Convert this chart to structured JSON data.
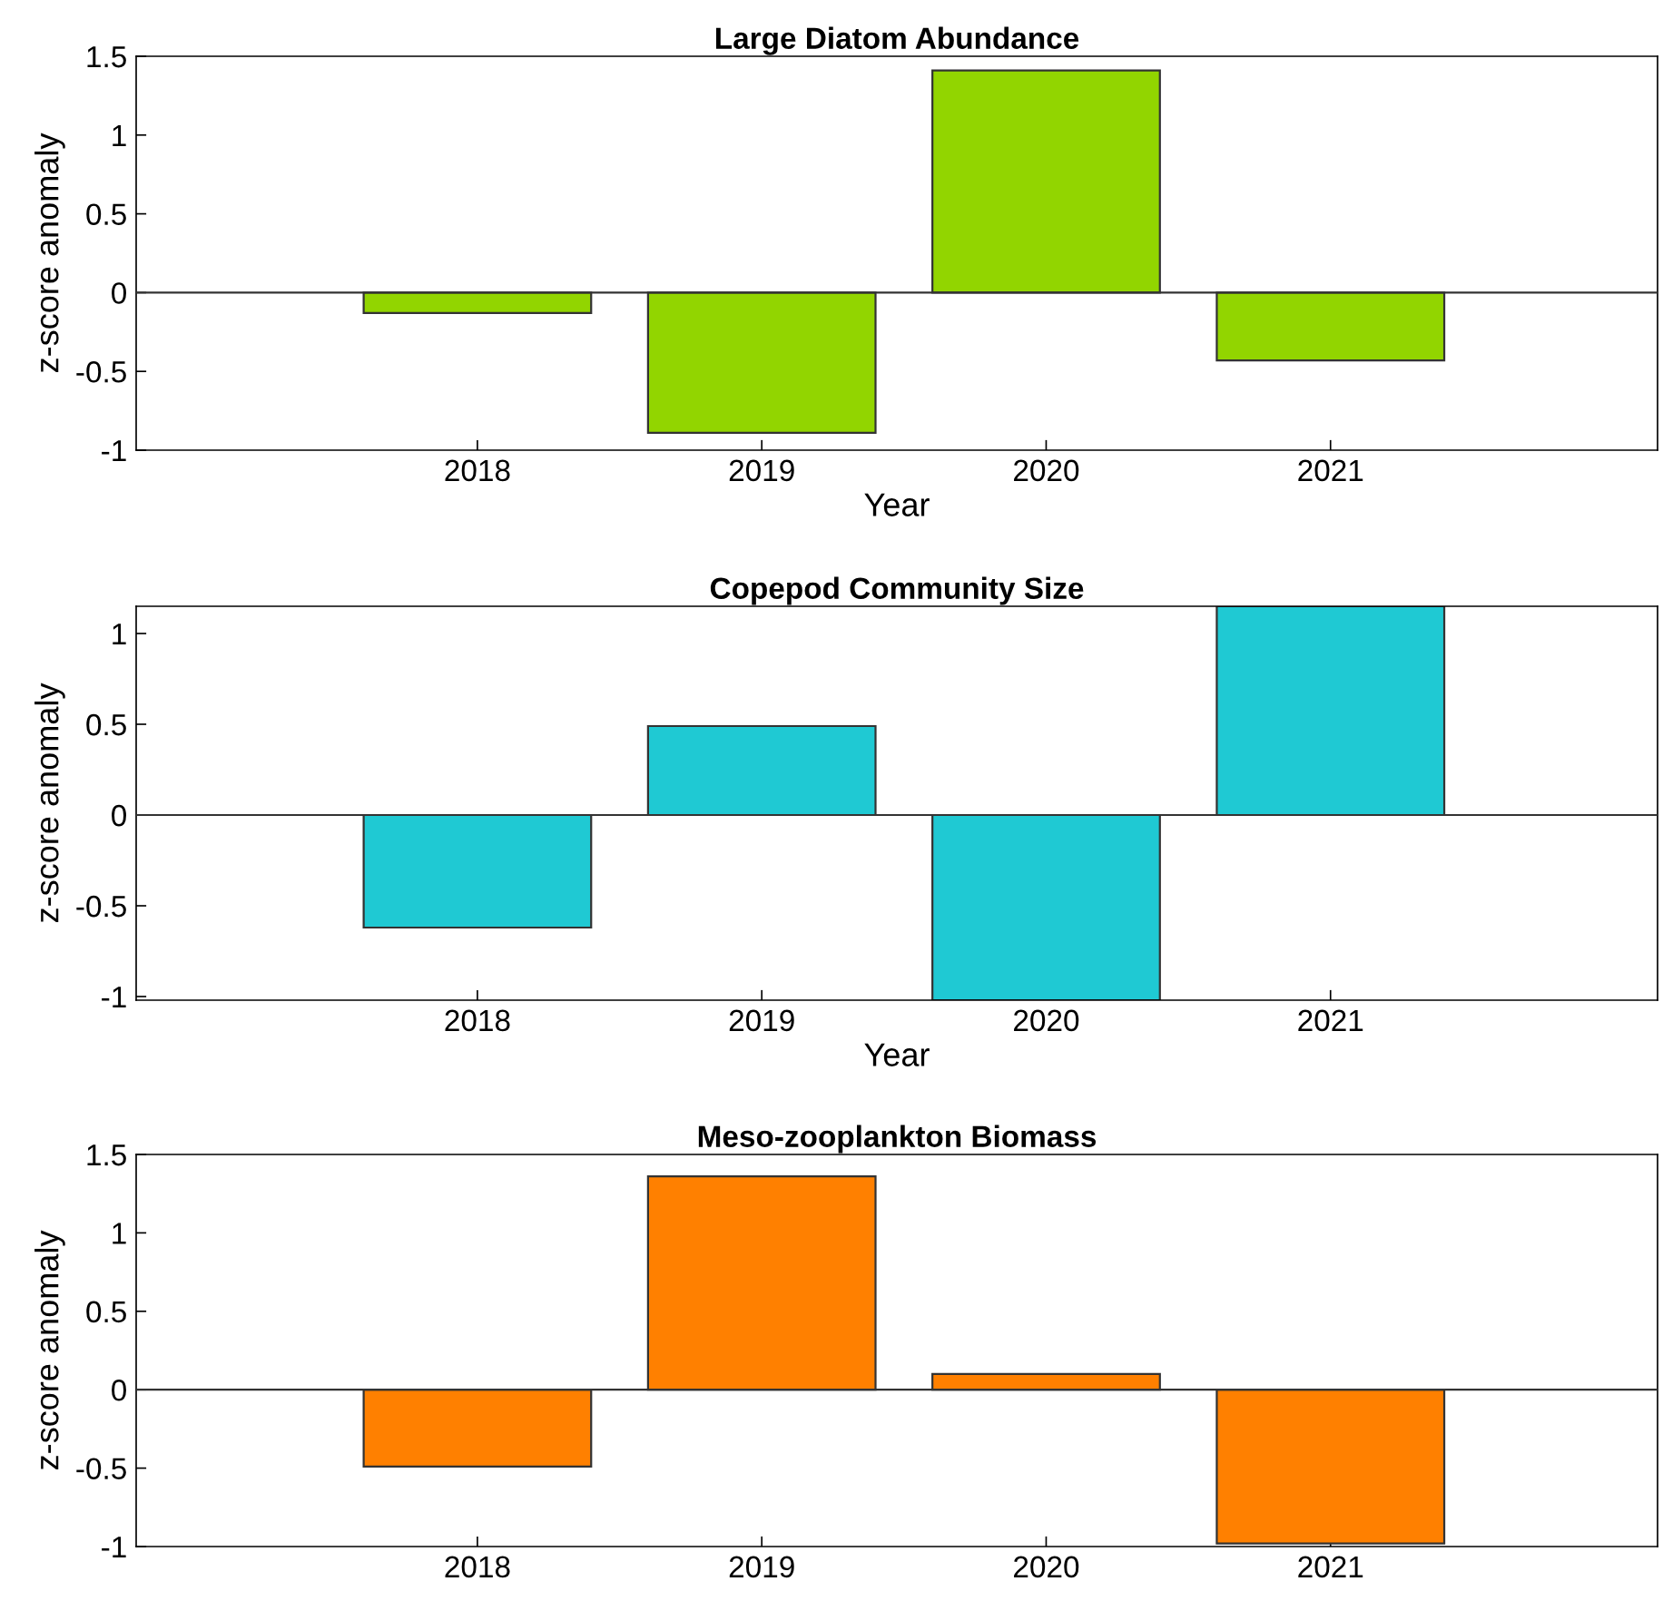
{
  "chart_data": [
    {
      "type": "bar",
      "title": "Large Diatom Abundance",
      "xlabel": "Year",
      "ylabel": "z-score anomaly",
      "x": [
        2018,
        2019,
        2020,
        2021
      ],
      "values": [
        -0.13,
        -0.89,
        1.41,
        -0.43
      ],
      "color": "#92d500",
      "xlim": [
        2016.8,
        2022.15
      ],
      "xticks": [
        2018,
        2019,
        2020,
        2021
      ],
      "ylim": [
        -1,
        1.5
      ],
      "yticks": [
        -1,
        -0.5,
        0,
        0.5,
        1,
        1.5
      ],
      "ref_lines": [
        {
          "axis": "y",
          "value": 0
        }
      ],
      "grid": false,
      "legend": false
    },
    {
      "type": "bar",
      "title": "Copepod Community Size",
      "xlabel": "Year",
      "ylabel": "z-score anomaly",
      "x": [
        2018,
        2019,
        2020,
        2021
      ],
      "values": [
        -0.62,
        0.49,
        -1.02,
        1.15
      ],
      "color": "#1fc9d3",
      "xlim": [
        2016.8,
        2022.15
      ],
      "xticks": [
        2018,
        2019,
        2020,
        2021
      ],
      "ylim": [
        -1.02,
        1.15
      ],
      "yticks": [
        -1,
        -0.5,
        0,
        0.5,
        1
      ],
      "ref_lines": [
        {
          "axis": "y",
          "value": 0
        }
      ],
      "grid": false,
      "legend": false
    },
    {
      "type": "bar",
      "title": "Meso-zooplankton Biomass",
      "ylabel": "z-score anomaly",
      "x": [
        2018,
        2019,
        2020,
        2021
      ],
      "values": [
        -0.49,
        1.36,
        0.1,
        -0.98
      ],
      "color": "#ff8000",
      "xlim": [
        2016.8,
        2022.15
      ],
      "xticks": [
        2018,
        2019,
        2020,
        2021
      ],
      "ylim": [
        -1,
        1.5
      ],
      "yticks": [
        -1,
        -0.5,
        0,
        0.5,
        1,
        1.5
      ],
      "ref_lines": [
        {
          "axis": "y",
          "value": 0
        }
      ],
      "grid": false,
      "legend": false
    }
  ]
}
